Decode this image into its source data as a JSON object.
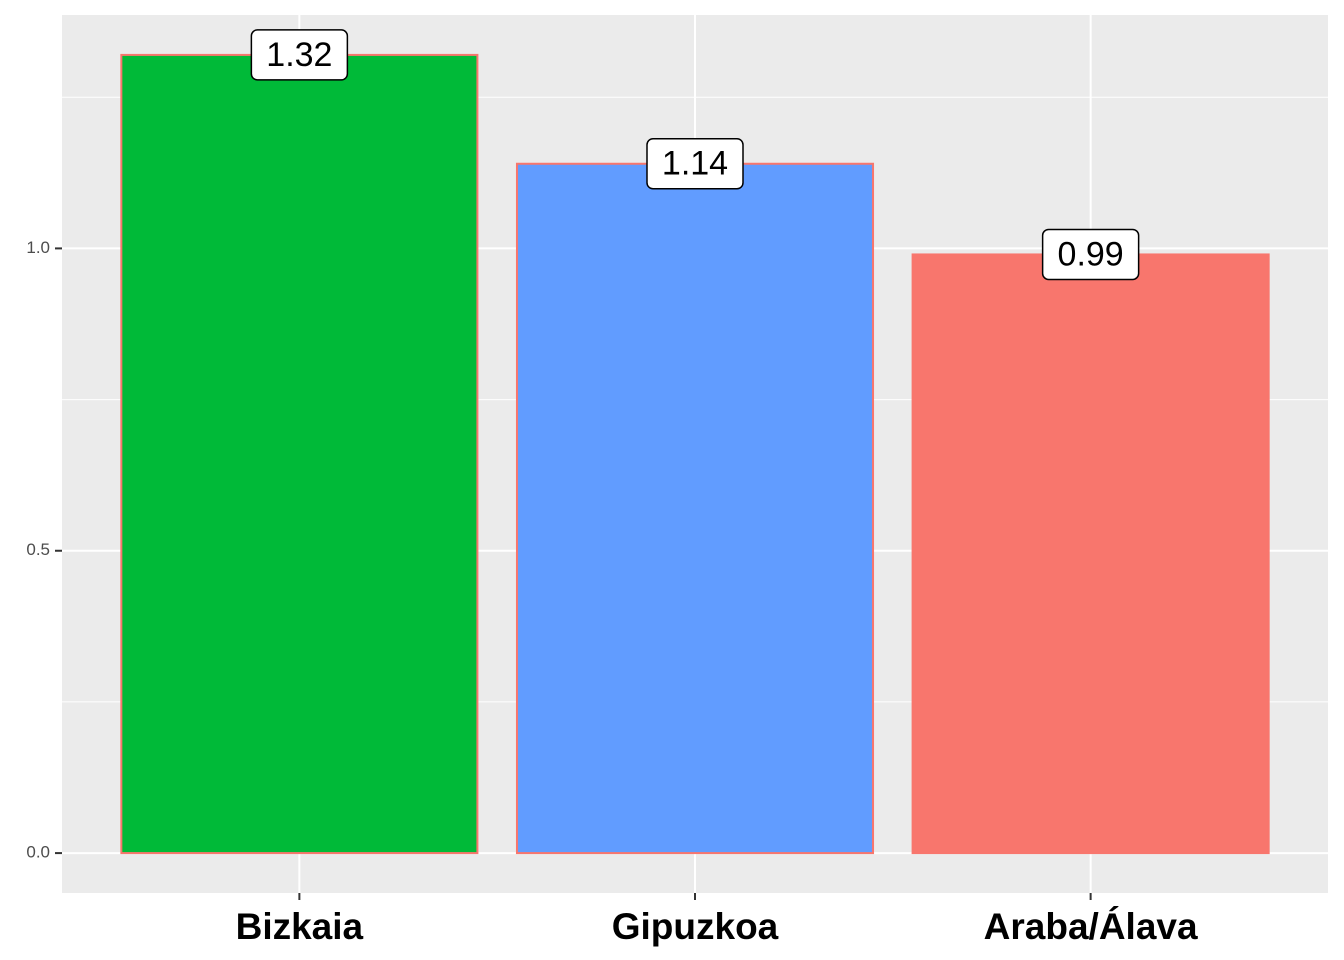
{
  "chart_data": {
    "type": "bar",
    "categories": [
      "Bizkaia",
      "Gipuzkoa",
      "Araba/Álava"
    ],
    "values": [
      1.32,
      1.14,
      0.99
    ],
    "colors": [
      "#00BA38",
      "#619CFF",
      "#F8766D"
    ],
    "border_color": "#F8766D",
    "ylim": [
      -0.066,
      1.386
    ],
    "yticks": [
      {
        "value": 0,
        "label": "0.0"
      },
      {
        "value": 0.5,
        "label": "0.5"
      },
      {
        "value": 1,
        "label": "1.0"
      }
    ],
    "minor_yticks": [
      0.25,
      0.75,
      1.25
    ],
    "grid": true
  }
}
